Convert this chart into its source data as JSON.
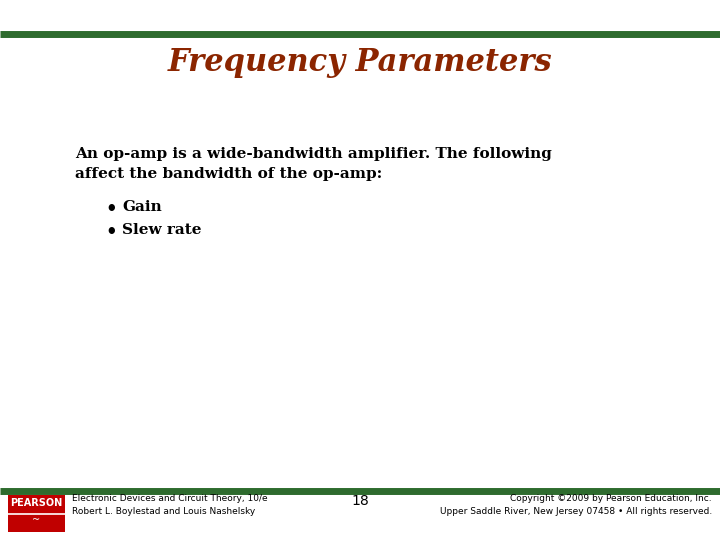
{
  "title": "Frequency Parameters",
  "title_color": "#8B2500",
  "title_fontsize": 22,
  "title_fontfamily": "serif",
  "body_text_line1": "An op-amp is a wide-bandwidth amplifier. The following",
  "body_text_line2": "affect the bandwidth of the op-amp:",
  "bullet_items": [
    "Gain",
    "Slew rate"
  ],
  "body_fontsize": 11,
  "body_fontfamily": "serif",
  "body_fontweight": "bold",
  "footer_left_line1": "Electronic Devices and Circuit Theory, 10/e",
  "footer_left_line2": "Robert L. Boylestad and Louis Nashelsky",
  "footer_center": "18",
  "footer_right_line1": "Copyright ©2009 by Pearson Education, Inc.",
  "footer_right_line2": "Upper Saddle River, New Jersey 07458 • All rights reserved.",
  "footer_fontsize": 6.5,
  "divider_color": "#2E6B2E",
  "background_color": "#ffffff",
  "pearson_box_color": "#C00000",
  "pearson_text": "PEARSON"
}
